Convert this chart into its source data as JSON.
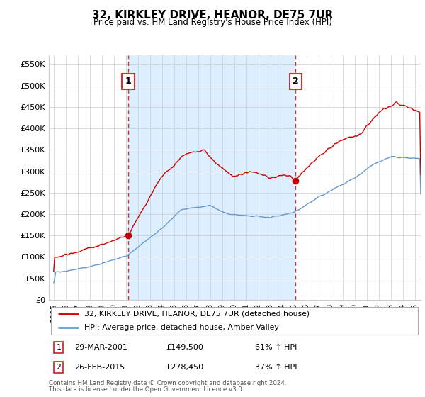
{
  "title": "32, KIRKLEY DRIVE, HEANOR, DE75 7UR",
  "subtitle": "Price paid vs. HM Land Registry's House Price Index (HPI)",
  "ylabel_ticks": [
    "£0",
    "£50K",
    "£100K",
    "£150K",
    "£200K",
    "£250K",
    "£300K",
    "£350K",
    "£400K",
    "£450K",
    "£500K",
    "£550K"
  ],
  "ytick_values": [
    0,
    50000,
    100000,
    150000,
    200000,
    250000,
    300000,
    350000,
    400000,
    450000,
    500000,
    550000
  ],
  "ylim": [
    0,
    570000
  ],
  "sale1_year": 2001.2,
  "sale1_price": 149500,
  "sale1_label": "1",
  "sale1_date": "29-MAR-2001",
  "sale1_pct": "61% ↑ HPI",
  "sale2_year": 2015.1,
  "sale2_price": 278450,
  "sale2_label": "2",
  "sale2_date": "26-FEB-2015",
  "sale2_pct": "37% ↑ HPI",
  "line_color_red": "#cc0000",
  "line_color_blue": "#6699cc",
  "vline_color": "#cc3333",
  "shade_color": "#ddeeff",
  "grid_color": "#cccccc",
  "background_color": "#ffffff",
  "legend_label_red": "32, KIRKLEY DRIVE, HEANOR, DE75 7UR (detached house)",
  "legend_label_blue": "HPI: Average price, detached house, Amber Valley",
  "footer1": "Contains HM Land Registry data © Crown copyright and database right 2024.",
  "footer2": "This data is licensed under the Open Government Licence v3.0."
}
